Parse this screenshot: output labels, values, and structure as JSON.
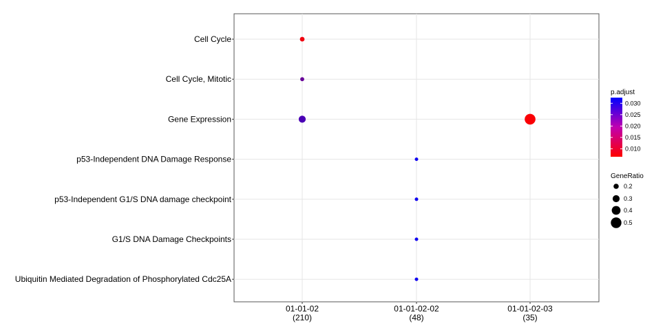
{
  "chart_data": {
    "type": "scatter",
    "title": "",
    "xlabel": "",
    "ylabel": "",
    "categories_x": [
      {
        "id": "01-01-02",
        "count": "(210)"
      },
      {
        "id": "01-01-02-02",
        "count": "(48)"
      },
      {
        "id": "01-01-02-03",
        "count": "(35)"
      }
    ],
    "categories_y": [
      "Cell Cycle",
      "Cell Cycle, Mitotic",
      "Gene Expression",
      "p53-Independent DNA Damage Response",
      "p53-Independent G1/S DNA damage checkpoint",
      "G1/S DNA Damage Checkpoints",
      "Ubiquitin Mediated Degradation of Phosphorylated Cdc25A"
    ],
    "points": [
      {
        "x": "01-01-02",
        "y": "Cell Cycle",
        "gene_ratio": 0.17,
        "p_adjust": 0.008
      },
      {
        "x": "01-01-02",
        "y": "Cell Cycle, Mitotic",
        "gene_ratio": 0.13,
        "p_adjust": 0.022
      },
      {
        "x": "01-01-02",
        "y": "Gene Expression",
        "gene_ratio": 0.3,
        "p_adjust": 0.025
      },
      {
        "x": "01-01-02-03",
        "y": "Gene Expression",
        "gene_ratio": 0.51,
        "p_adjust": 0.007
      },
      {
        "x": "01-01-02-02",
        "y": "p53-Independent DNA Damage Response",
        "gene_ratio": 0.1,
        "p_adjust": 0.031
      },
      {
        "x": "01-01-02-02",
        "y": "p53-Independent G1/S DNA damage checkpoint",
        "gene_ratio": 0.1,
        "p_adjust": 0.031
      },
      {
        "x": "01-01-02-02",
        "y": "G1/S DNA Damage Checkpoints",
        "gene_ratio": 0.1,
        "p_adjust": 0.031
      },
      {
        "x": "01-01-02-02",
        "y": "Ubiquitin Mediated Degradation of Phosphorylated Cdc25A",
        "gene_ratio": 0.1,
        "p_adjust": 0.031
      }
    ],
    "color_legend": {
      "title": "p.adjust",
      "ticks": [
        "0.030",
        "0.025",
        "0.020",
        "0.015",
        "0.010"
      ],
      "tick_values": [
        0.03,
        0.025,
        0.02,
        0.015,
        0.01
      ],
      "range": [
        0.0065,
        0.0325
      ],
      "low_color": "#ff0000",
      "high_color": "#0000ff"
    },
    "size_legend": {
      "title": "GeneRatio",
      "ticks": [
        "0.2",
        "0.3",
        "0.4",
        "0.5"
      ],
      "tick_values": [
        0.2,
        0.3,
        0.4,
        0.5
      ]
    },
    "grid": true,
    "legend_position": "right"
  }
}
